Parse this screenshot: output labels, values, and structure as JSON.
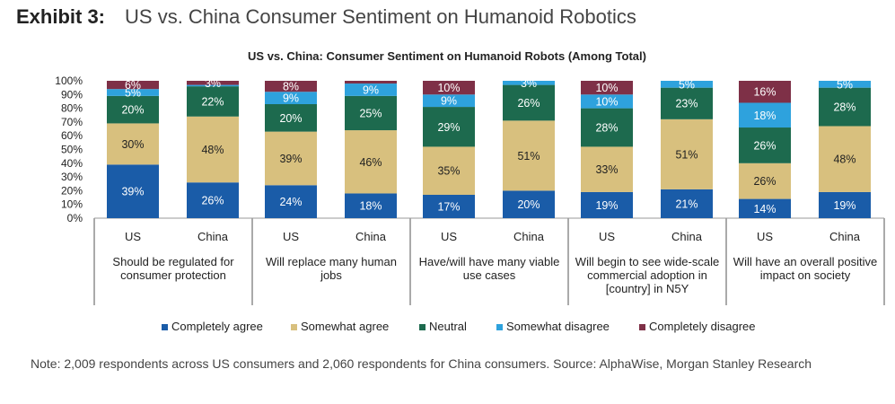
{
  "exhibit": {
    "label": "Exhibit 3:",
    "title": "US vs. China Consumer Sentiment on Humanoid Robotics"
  },
  "note": "Note: 2,009 respondents across US consumers and 2,060 respondents for China consumers. Source: AlphaWise, Morgan Stanley Research",
  "colors": {
    "completely_agree": "#1a5ca8",
    "somewhat_agree": "#d8c07e",
    "neutral": "#1d6a4e",
    "somewhat_disagree": "#2ea2dd",
    "completely_disagree": "#7e3047"
  },
  "chart_data": {
    "type": "bar",
    "stacked": true,
    "title": "US vs. China: Consumer Sentiment on Humanoid Robots (Among Total)",
    "ylim": [
      0,
      100
    ],
    "yticks": [
      "0%",
      "10%",
      "20%",
      "30%",
      "40%",
      "50%",
      "60%",
      "70%",
      "80%",
      "90%",
      "100%"
    ],
    "legend_position": "bottom",
    "groups": [
      {
        "label": [
          "Should be regulated for",
          "consumer protection"
        ],
        "bars": [
          {
            "name": "US",
            "values": [
              39,
              30,
              20,
              5,
              6
            ],
            "labels": [
              "39%",
              "30%",
              "20%",
              "5%",
              "6%"
            ]
          },
          {
            "name": "China",
            "values": [
              26,
              48,
              22,
              1,
              3
            ],
            "labels": [
              "26%",
              "48%",
              "22%",
              "",
              "3%"
            ]
          }
        ]
      },
      {
        "label": [
          "Will replace many human",
          "jobs"
        ],
        "bars": [
          {
            "name": "US",
            "values": [
              24,
              39,
              20,
              9,
              8
            ],
            "labels": [
              "24%",
              "39%",
              "20%",
              "9%",
              "8%"
            ]
          },
          {
            "name": "China",
            "values": [
              18,
              46,
              25,
              9,
              2
            ],
            "labels": [
              "18%",
              "46%",
              "25%",
              "9%",
              ""
            ]
          }
        ]
      },
      {
        "label": [
          "Have/will have many viable",
          "use cases"
        ],
        "bars": [
          {
            "name": "US",
            "values": [
              17,
              35,
              29,
              9,
              10
            ],
            "labels": [
              "17%",
              "35%",
              "29%",
              "9%",
              "10%"
            ]
          },
          {
            "name": "China",
            "values": [
              20,
              51,
              26,
              3,
              0
            ],
            "labels": [
              "20%",
              "51%",
              "26%",
              "3%",
              ""
            ]
          }
        ]
      },
      {
        "label": [
          "Will begin to see wide-scale",
          "commercial adoption in",
          "[country] in N5Y"
        ],
        "bars": [
          {
            "name": "US",
            "values": [
              19,
              33,
              28,
              10,
              10
            ],
            "labels": [
              "19%",
              "33%",
              "28%",
              "10%",
              "10%"
            ]
          },
          {
            "name": "China",
            "values": [
              21,
              51,
              23,
              5,
              0
            ],
            "labels": [
              "21%",
              "51%",
              "23%",
              "5%",
              ""
            ]
          }
        ]
      },
      {
        "label": [
          "Will have an overall positive",
          "impact on society"
        ],
        "bars": [
          {
            "name": "US",
            "values": [
              14,
              26,
              26,
              18,
              16
            ],
            "labels": [
              "14%",
              "26%",
              "26%",
              "18%",
              "16%"
            ]
          },
          {
            "name": "China",
            "values": [
              19,
              48,
              28,
              5,
              0
            ],
            "labels": [
              "19%",
              "48%",
              "28%",
              "5%",
              ""
            ]
          }
        ]
      }
    ],
    "series": [
      {
        "key": "completely_agree",
        "name": "Completely agree"
      },
      {
        "key": "somewhat_agree",
        "name": "Somewhat agree"
      },
      {
        "key": "neutral",
        "name": "Neutral"
      },
      {
        "key": "somewhat_disagree",
        "name": "Somewhat disagree"
      },
      {
        "key": "completely_disagree",
        "name": "Completely disagree"
      }
    ]
  }
}
